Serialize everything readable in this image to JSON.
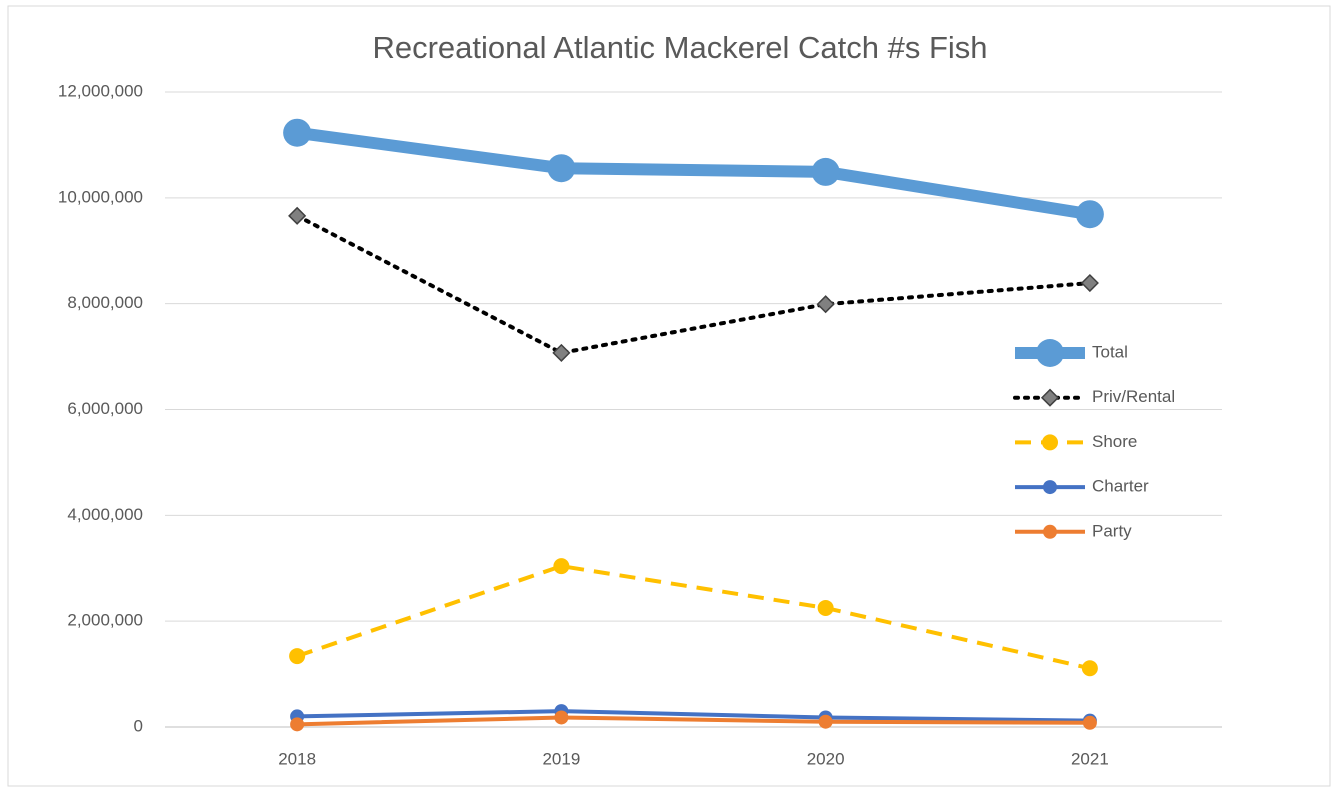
{
  "chart_data": {
    "type": "line",
    "title": "Recreational Atlantic Mackerel Catch #s Fish",
    "categories": [
      "2018",
      "2019",
      "2020",
      "2021"
    ],
    "series": [
      {
        "name": "Total",
        "color": "#5b9bd5",
        "values": [
          11230000,
          10560000,
          10490000,
          9690000
        ]
      },
      {
        "name": "Priv/Rental",
        "color": "#000000",
        "values": [
          9660000,
          7070000,
          7990000,
          8390000
        ]
      },
      {
        "name": "Shore",
        "color": "#ffc000",
        "values": [
          1340000,
          3040000,
          2250000,
          1110000
        ]
      },
      {
        "name": "Charter",
        "color": "#4472c4",
        "values": [
          200000,
          300000,
          180000,
          120000
        ]
      },
      {
        "name": "Party",
        "color": "#ed7d31",
        "values": [
          50000,
          180000,
          100000,
          80000
        ]
      }
    ],
    "ylim": [
      0,
      12000000
    ],
    "yticks": [
      0,
      {
        "value": 2000000,
        "label": "2,000,000"
      },
      {
        "value": 4000000,
        "label": "4,000,000"
      },
      {
        "value": 6000000,
        "label": "6,000,000"
      },
      {
        "value": 8000000,
        "label": "8,000,000"
      },
      {
        "value": 10000000,
        "label": "10,000,000"
      },
      {
        "value": 12000000,
        "label": "12,000,000"
      }
    ],
    "grid": true,
    "legend": "right"
  }
}
